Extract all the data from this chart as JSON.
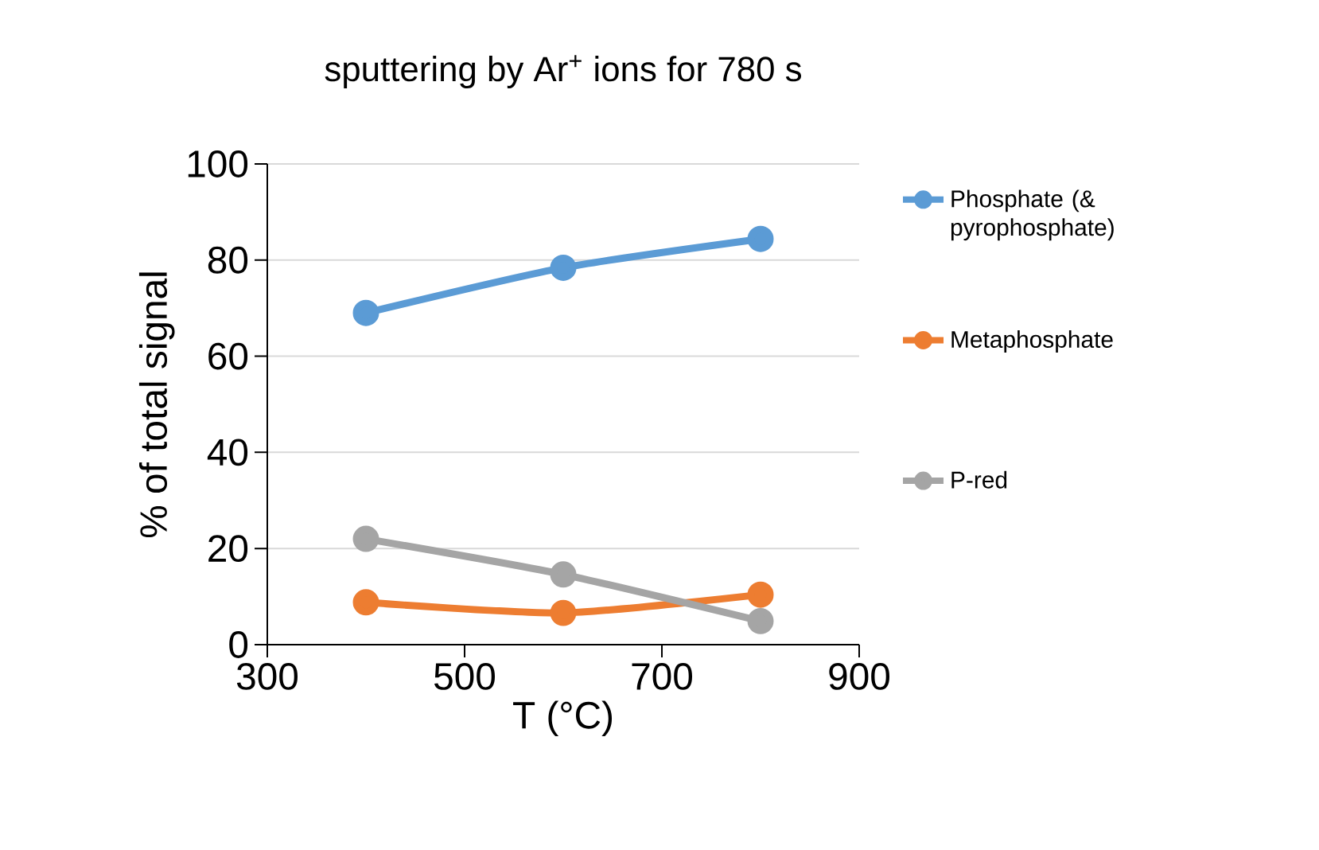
{
  "chart_data": {
    "type": "line",
    "title": "sputtering by Ar$^{+}$ ions for 780 s",
    "xlabel": "T (°C)",
    "ylabel": "% of total signal",
    "x": [
      400,
      600,
      800
    ],
    "series": [
      {
        "name": "Phosphate (& pyrophosphate)",
        "color": "#5b9bd5",
        "values": [
          69,
          78.4,
          84.4
        ]
      },
      {
        "name": "Metaphosphate",
        "color": "#ed7d31",
        "values": [
          8.8,
          6.6,
          10.4
        ]
      },
      {
        "name": "P-red",
        "color": "#a5a5a5",
        "values": [
          22,
          14.6,
          4.9
        ]
      }
    ],
    "xlim": [
      300,
      900
    ],
    "xticks": [
      300,
      500,
      700,
      900
    ],
    "ylim": [
      0,
      100
    ],
    "yticks": [
      0,
      20,
      40,
      60,
      80,
      100
    ],
    "grid": "y",
    "legend": "right",
    "marker": "circle",
    "line_style": "solid"
  }
}
